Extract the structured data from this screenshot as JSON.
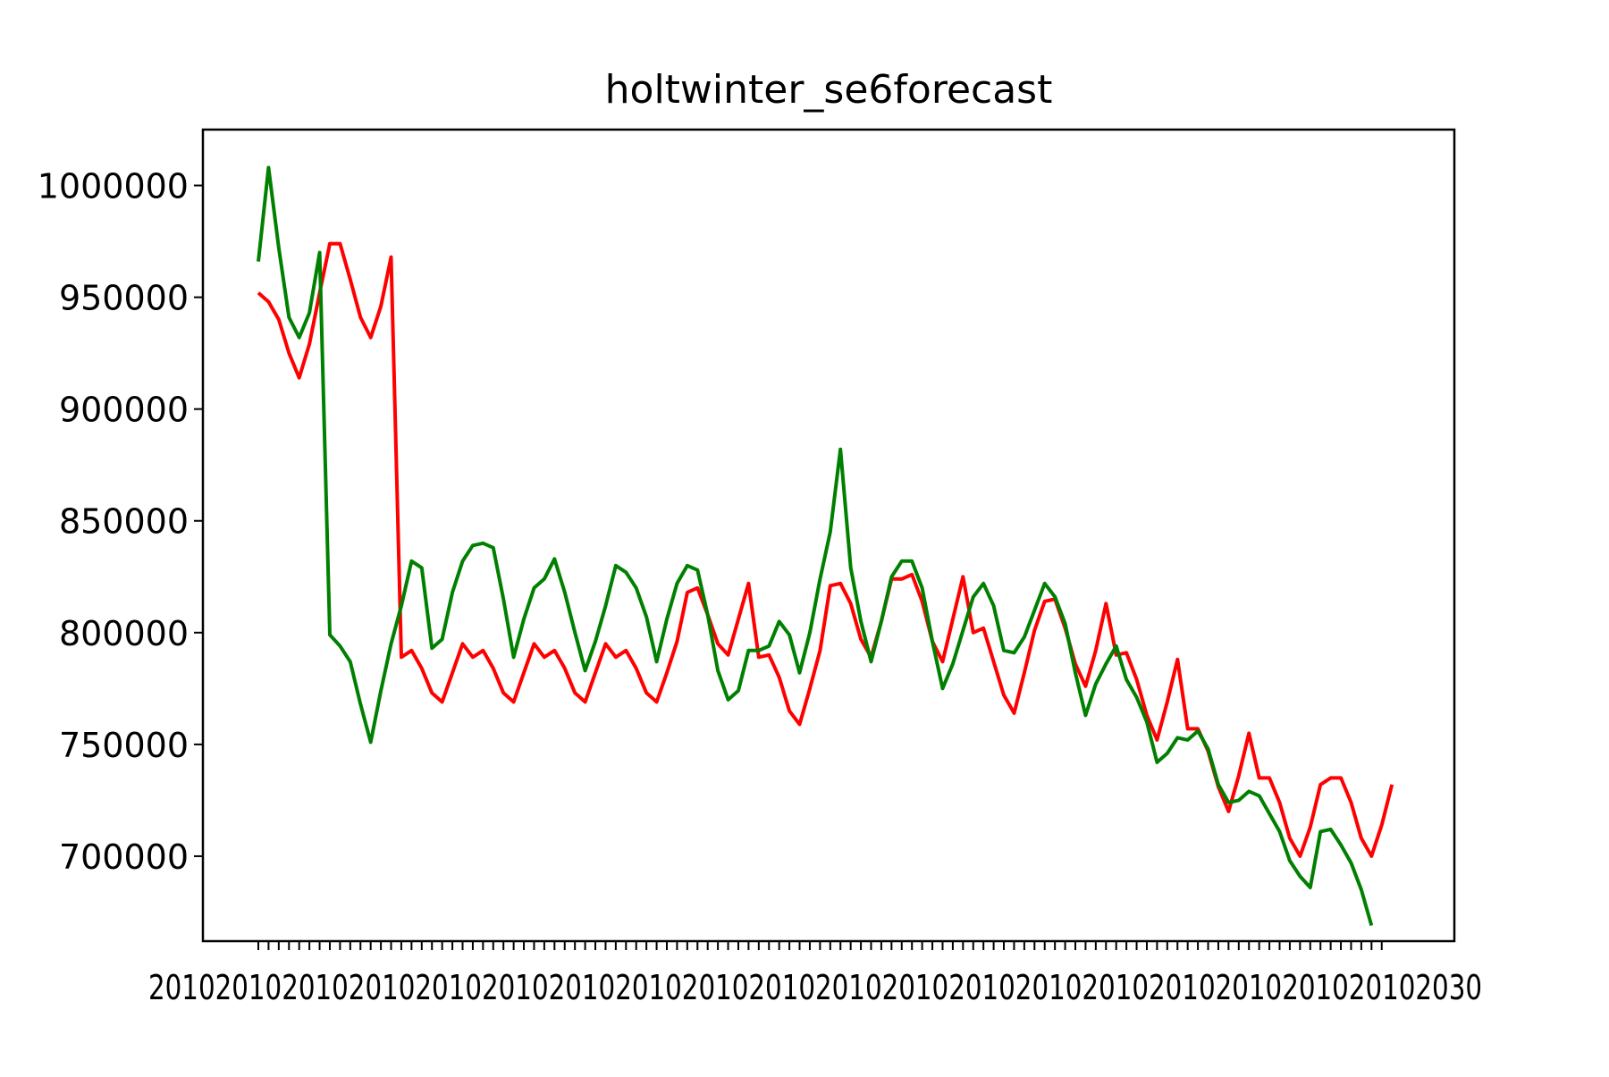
{
  "chart_data": {
    "type": "line",
    "title": "holtwinter_se6forecast",
    "xlabel": "",
    "ylabel": "",
    "ylim": [
      662000,
      1025000
    ],
    "yticks": [
      700000,
      750000,
      800000,
      850000,
      900000,
      950000,
      1000000
    ],
    "ytick_labels": [
      "700000",
      "750000",
      "800000",
      "850000",
      "900000",
      "950000",
      "1000000"
    ],
    "grid": false,
    "legend": "none",
    "x_count": 112,
    "xtick_count": 111,
    "xtick_labels_note": "overlapping date labels, unreadable",
    "series": [
      {
        "color": "#ff0000",
        "values": [
          952000,
          948000,
          940000,
          925000,
          914000,
          929000,
          952000,
          974000,
          974000,
          958000,
          941000,
          932000,
          946000,
          968000,
          789000,
          792000,
          784000,
          773000,
          769000,
          782000,
          795000,
          789000,
          792000,
          784000,
          773000,
          769000,
          782000,
          795000,
          789000,
          792000,
          784000,
          773000,
          769000,
          782000,
          795000,
          789000,
          792000,
          784000,
          773000,
          769000,
          782000,
          796000,
          818000,
          820000,
          808000,
          795000,
          790000,
          806000,
          822000,
          789000,
          790000,
          780000,
          765000,
          759000,
          775000,
          792000,
          821000,
          822000,
          813000,
          797000,
          789000,
          805000,
          824000,
          824000,
          826000,
          814000,
          796000,
          787000,
          806000,
          825000,
          800000,
          802000,
          787000,
          772000,
          764000,
          782000,
          801000,
          814000,
          815000,
          802000,
          786000,
          776000,
          792000,
          813000,
          790000,
          791000,
          779000,
          763000,
          752000,
          769000,
          788000,
          757000,
          757000,
          747000,
          731000,
          720000,
          736000,
          755000,
          735000,
          735000,
          724000,
          708000,
          700000,
          713000,
          732000,
          735000,
          735000,
          724000,
          708000,
          700000,
          714000,
          732000
        ]
      },
      {
        "color": "#008000",
        "values": [
          966000,
          1008000,
          972000,
          941000,
          932000,
          943000,
          970000,
          799000,
          794000,
          787000,
          768000,
          751000,
          774000,
          795000,
          812000,
          832000,
          829000,
          793000,
          797000,
          818000,
          832000,
          839000,
          840000,
          838000,
          815000,
          789000,
          806000,
          820000,
          824000,
          833000,
          818000,
          800000,
          783000,
          796000,
          812000,
          830000,
          827000,
          820000,
          807000,
          787000,
          806000,
          822000,
          830000,
          828000,
          808000,
          783000,
          770000,
          774000,
          792000,
          792000,
          794000,
          805000,
          799000,
          782000,
          800000,
          824000,
          845000,
          882000,
          829000,
          805000,
          787000,
          805000,
          825000,
          832000,
          832000,
          820000,
          796000,
          775000,
          786000,
          801000,
          816000,
          822000,
          812000,
          792000,
          791000,
          798000,
          810000,
          822000,
          816000,
          804000,
          782000,
          763000,
          777000,
          786000,
          794000,
          779000,
          771000,
          760000,
          742000,
          746000,
          753000,
          752000,
          756000,
          748000,
          732000,
          724000,
          725000,
          729000,
          727000,
          719000,
          711000,
          698000,
          691000,
          686000,
          711000,
          712000,
          705000,
          697000,
          685000,
          669000
        ]
      }
    ]
  }
}
